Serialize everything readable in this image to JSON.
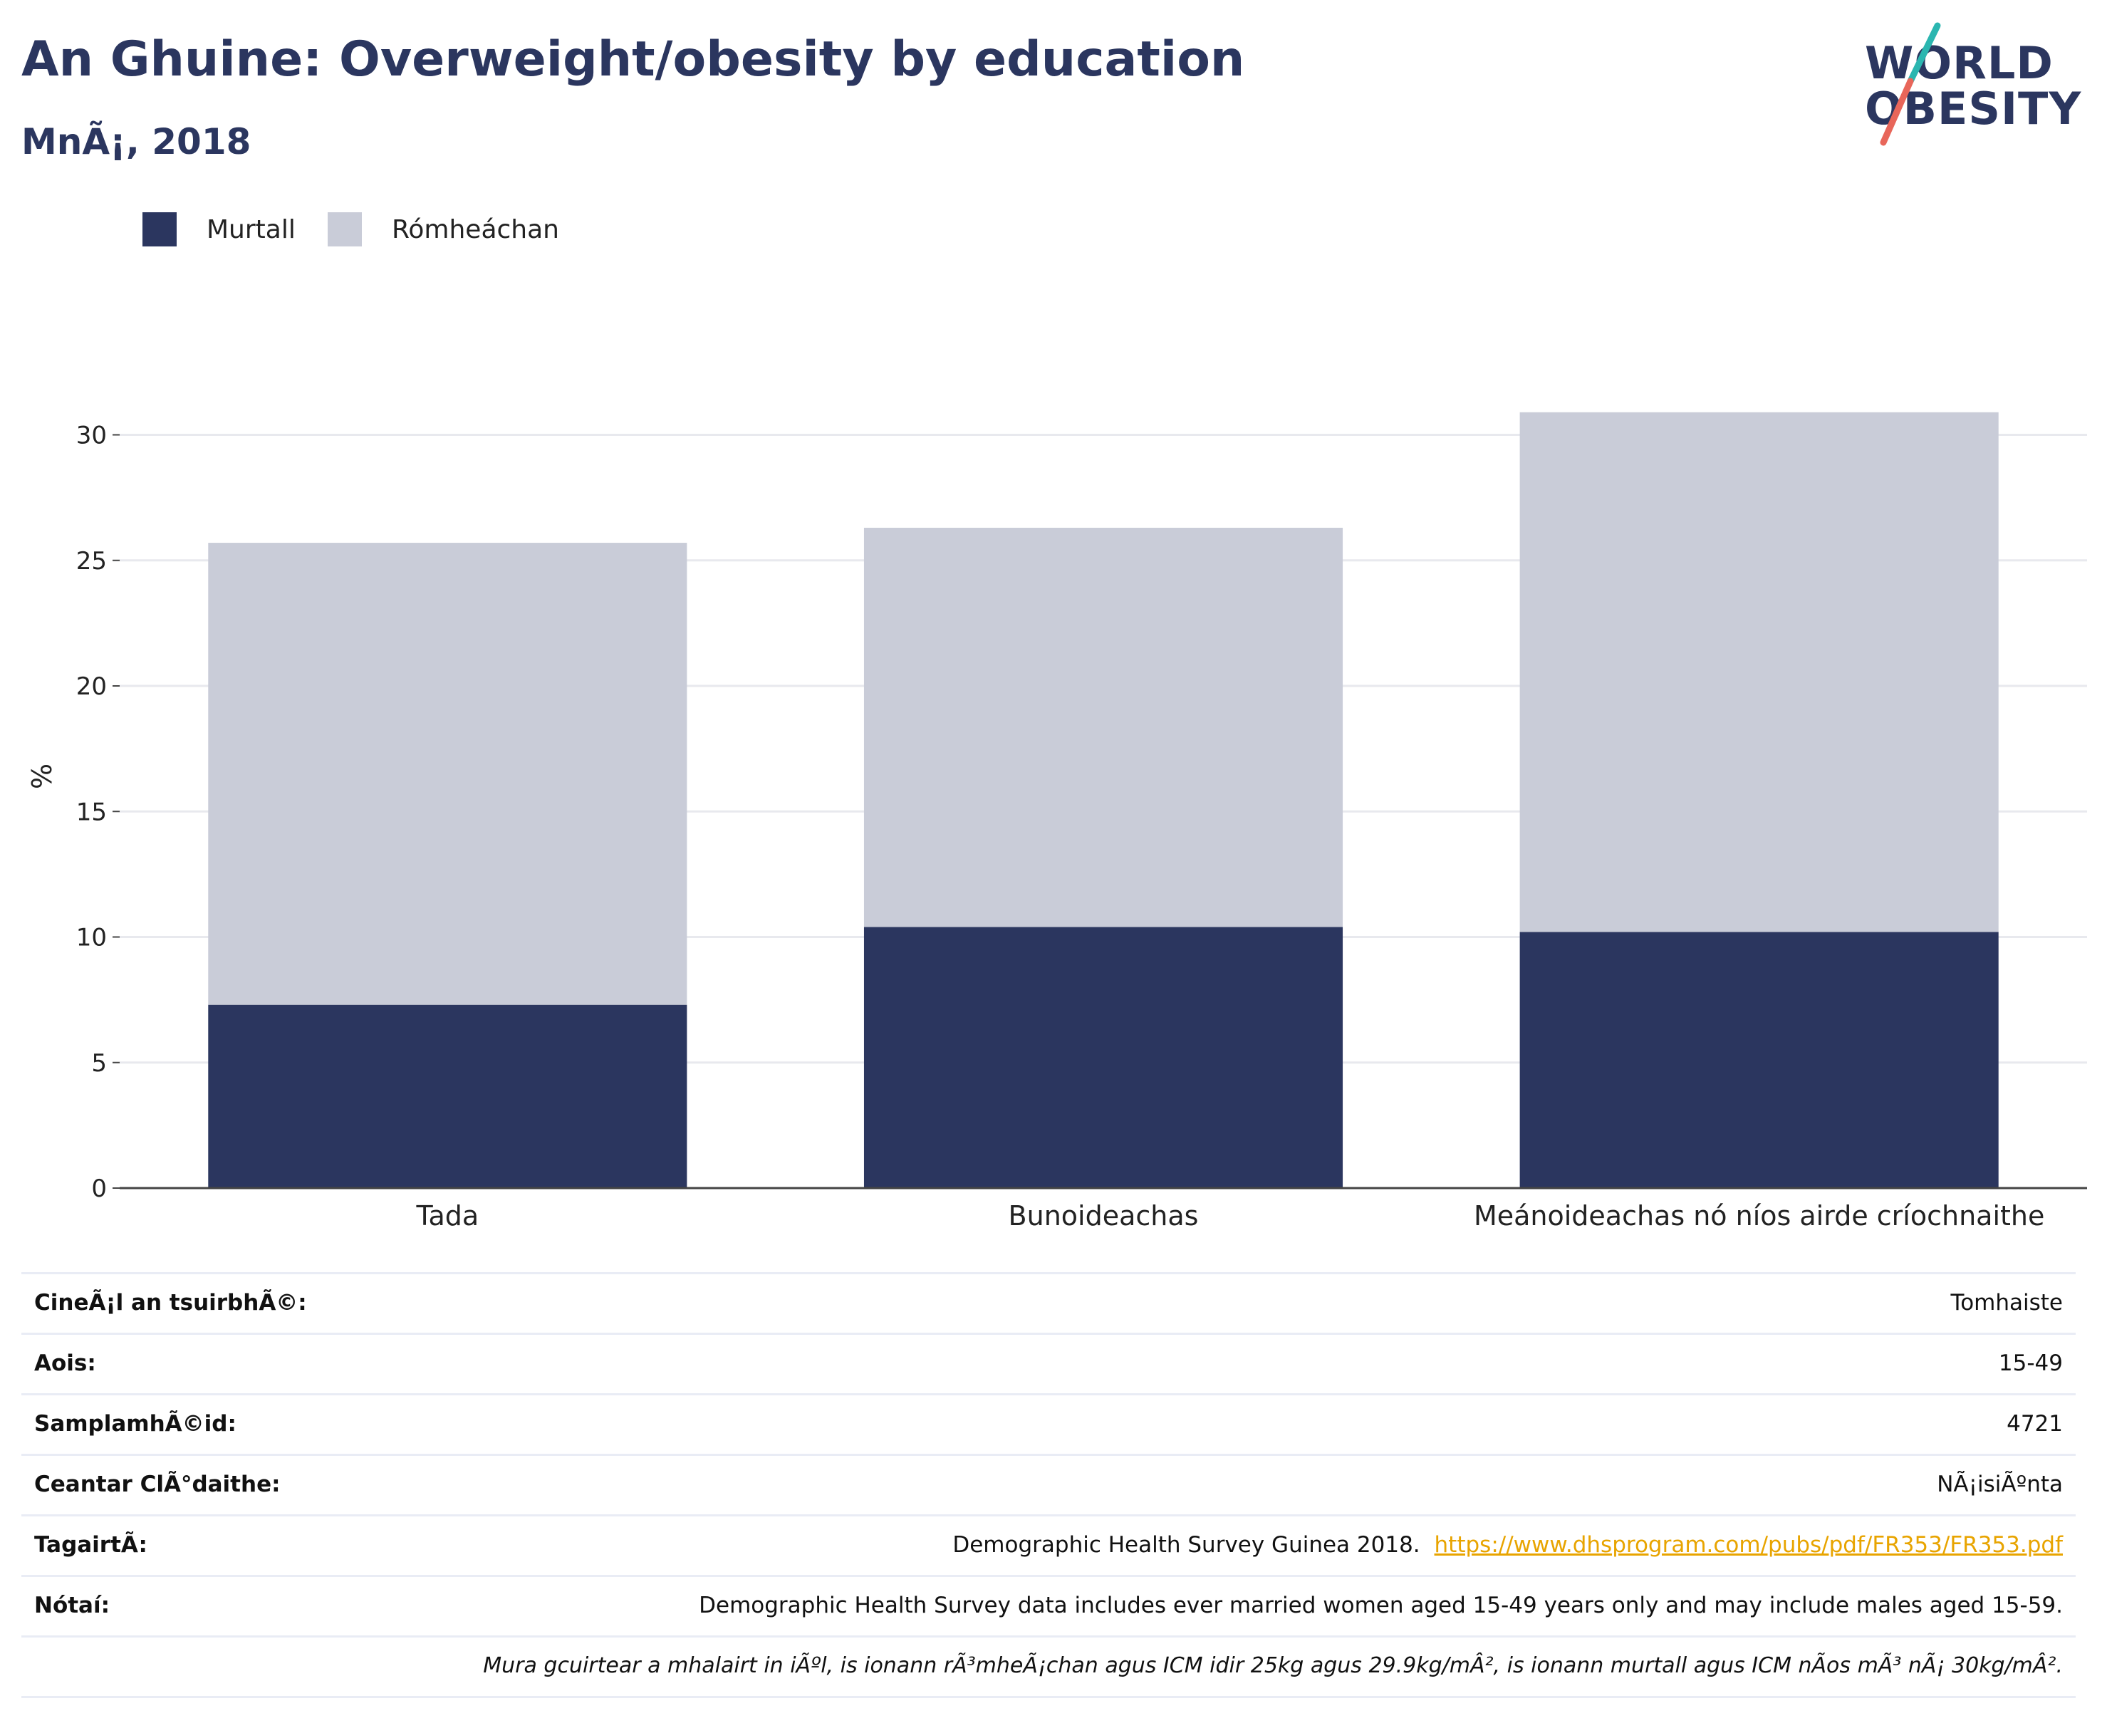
{
  "header": {
    "title": "An Ghuine: Overweight/obesity by education",
    "subtitle": "MnÃ¡, 2018"
  },
  "logo": {
    "line1": "WORLD",
    "line2": "OBESITY",
    "accent_teal": "#2bb6b0",
    "accent_coral": "#e8665a"
  },
  "colors": {
    "obese": "#2b365f",
    "overweight": "#c9ccd8",
    "grid": "#e8e9ee",
    "link": "#e8a400"
  },
  "legend": [
    {
      "label": "Murtall",
      "color": "#2b365f"
    },
    {
      "label": "Rómheáchan",
      "color": "#c9ccd8"
    }
  ],
  "chart_data": {
    "type": "bar",
    "stacked": true,
    "categories": [
      "Tada",
      "Bunoideachas",
      "Meánoideachas nó níos airde críochnaithe"
    ],
    "series": [
      {
        "name": "Murtall",
        "values": [
          7.3,
          10.4,
          10.2
        ]
      },
      {
        "name": "Rómheáchan",
        "values": [
          18.4,
          15.9,
          20.7
        ]
      }
    ],
    "ylabel": "%",
    "xlabel": "",
    "ylim": [
      0,
      32
    ],
    "yticks": [
      0,
      5,
      10,
      15,
      20,
      25,
      30
    ],
    "grid": true,
    "legend_position": "top-left"
  },
  "info": [
    {
      "key": "CineÃ¡l an tsuirbhÃ©:",
      "value": "Tomhaiste"
    },
    {
      "key": "Aois:",
      "value": "15-49"
    },
    {
      "key": "SamplamhÃ©id:",
      "value": "4721"
    },
    {
      "key": "Ceantar ClÃ°daithe:",
      "value": "NÃ¡isiÃºnta"
    },
    {
      "key": "TagairtÃ:",
      "value": "Demographic Health Survey Guinea 2018.",
      "link": "https://www.dhsprogram.com/pubs/pdf/FR353/FR353.pdf"
    },
    {
      "key": "Nótaí:",
      "value": "Demographic Health Survey data includes ever married women aged 15-49 years only and may include males aged 15-59."
    },
    {
      "key": "",
      "value": "Mura gcuirtear a mhalairt in iÃºl, is ionann rÃ³mheÃ¡chan agus ICM idir 25kg agus 29.9kg/mÂ², is ionann murtall agus ICM nÃos mÃ³ nÃ¡ 30kg/mÂ²."
    }
  ]
}
